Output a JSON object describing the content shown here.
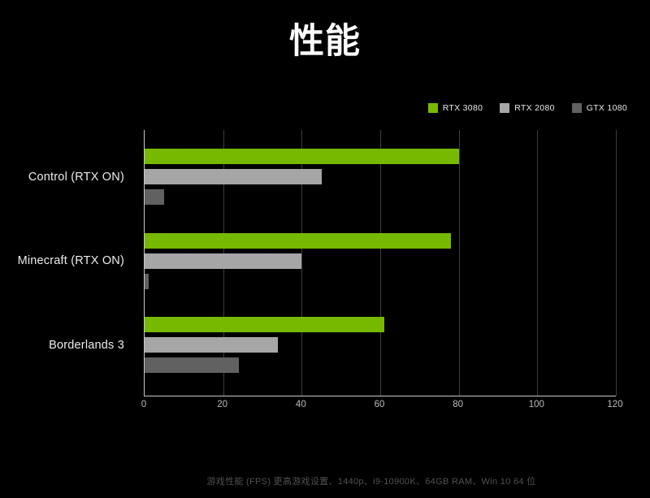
{
  "page": {
    "background_color": "#000000",
    "accent_color": "#76b900"
  },
  "chart_data": {
    "type": "bar",
    "orientation": "horizontal",
    "title": "性能",
    "categories": [
      "Control (RTX ON)",
      "Minecraft (RTX ON)",
      "Borderlands 3"
    ],
    "series": [
      {
        "name": "RTX 3080",
        "color": "#76b900",
        "values": [
          80,
          78,
          61
        ]
      },
      {
        "name": "RTX 2080",
        "color": "#a6a6a6",
        "values": [
          45,
          40,
          34
        ]
      },
      {
        "name": "GTX 1080",
        "color": "#616161",
        "values": [
          5,
          1,
          24
        ]
      }
    ],
    "xlabel": "",
    "ylabel": "",
    "xlim": [
      0,
      120
    ],
    "xticks": [
      0,
      20,
      40,
      60,
      80,
      100,
      120
    ],
    "grid": "vertical",
    "legend_position": "top-right",
    "footnote": "游戏性能 (FPS) 更高游戏设置、1440p、i9-10900K、64GB RAM、Win 10 64 位"
  }
}
